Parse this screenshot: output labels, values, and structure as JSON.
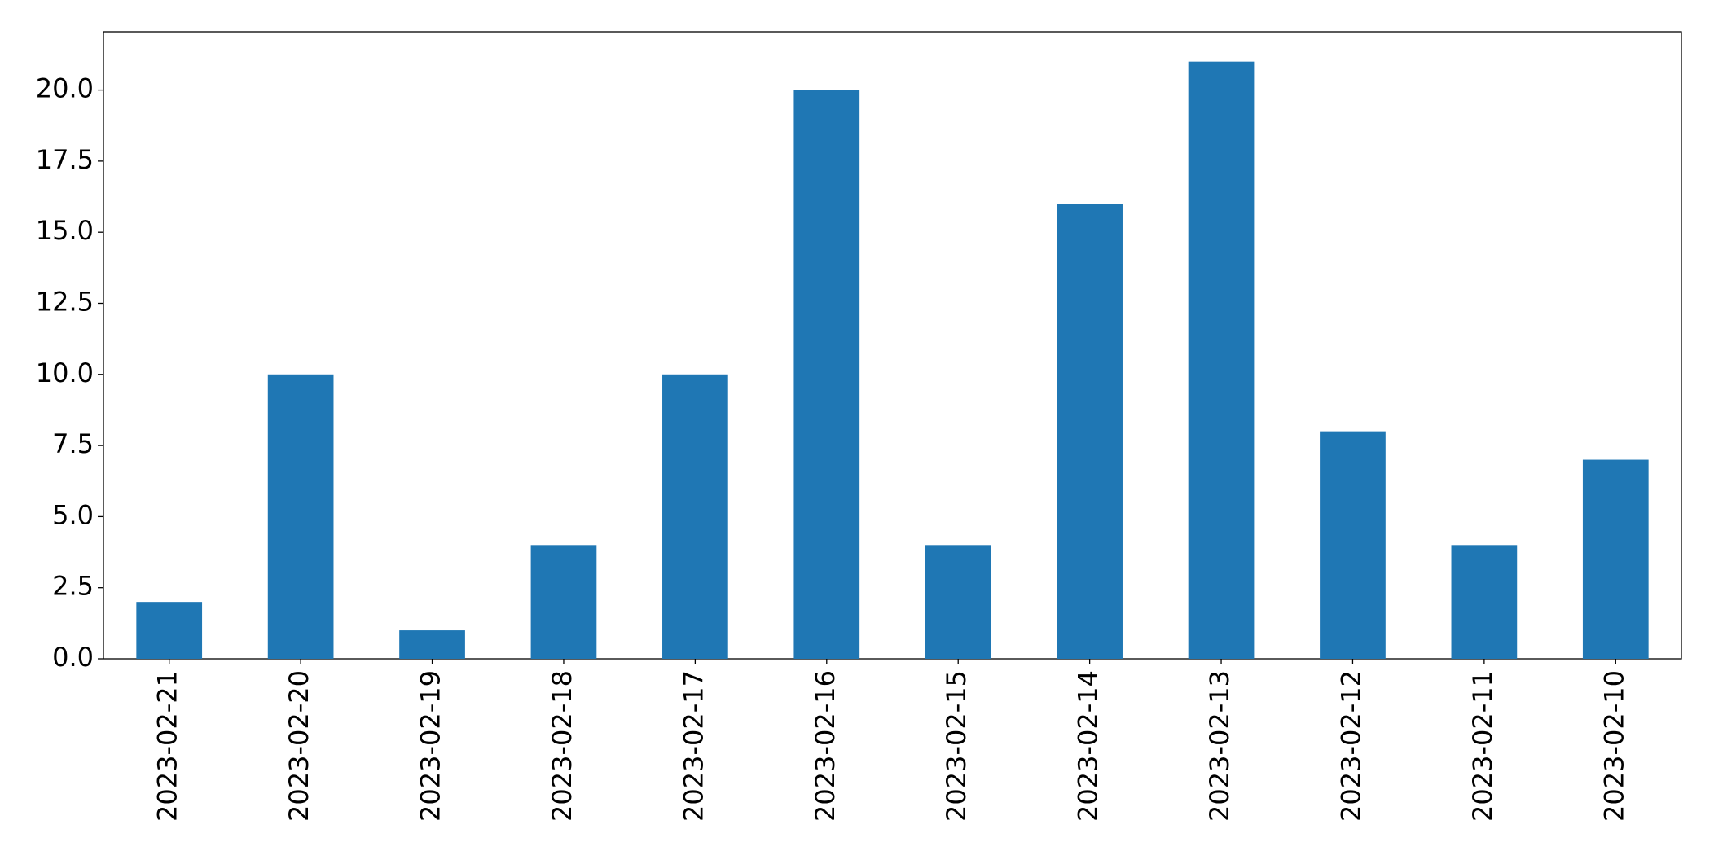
{
  "chart_data": {
    "type": "bar",
    "categories": [
      "2023-02-21",
      "2023-02-20",
      "2023-02-19",
      "2023-02-18",
      "2023-02-17",
      "2023-02-16",
      "2023-02-15",
      "2023-02-14",
      "2023-02-13",
      "2023-02-12",
      "2023-02-11",
      "2023-02-10"
    ],
    "values": [
      2,
      10,
      1,
      4,
      10,
      20,
      4,
      16,
      21,
      8,
      4,
      7
    ],
    "color": "#1f77b4",
    "ylim": [
      0,
      22.05
    ],
    "yticks": [
      {
        "value": 0,
        "label": "0.0"
      },
      2.5,
      {
        "value": 5,
        "label": "5.0"
      },
      7.5,
      {
        "value": 10,
        "label": "10.0"
      },
      12.5,
      {
        "value": 15,
        "label": "15.0"
      },
      17.5,
      {
        "value": 20,
        "label": "20.0"
      }
    ],
    "grid": false
  }
}
